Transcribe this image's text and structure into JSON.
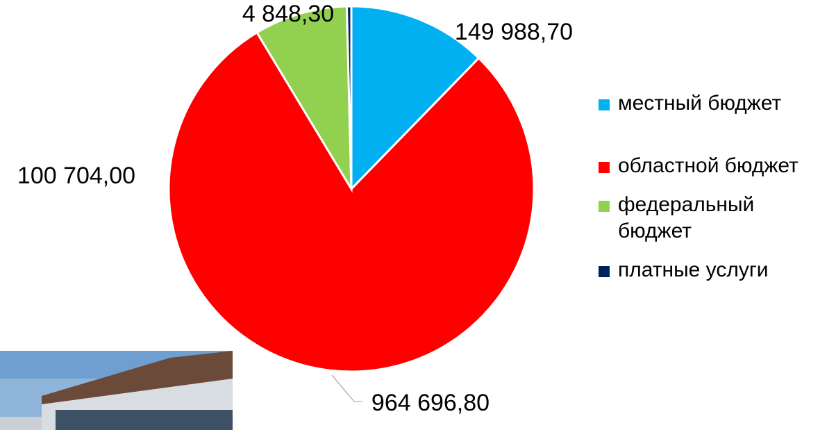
{
  "chart_data": {
    "type": "pie",
    "categories": [
      "местный бюджет",
      "областной бюджет",
      "федеральный бюджет",
      "платные услуги"
    ],
    "values": [
      149988.7,
      964696.8,
      100704.0,
      4848.3
    ],
    "value_labels": [
      "149 988,70",
      "964 696,80",
      "100 704,00",
      "4 848,30"
    ],
    "colors": [
      "#00b0f0",
      "#ff0000",
      "#92d050",
      "#002060"
    ],
    "legend": "right"
  }
}
